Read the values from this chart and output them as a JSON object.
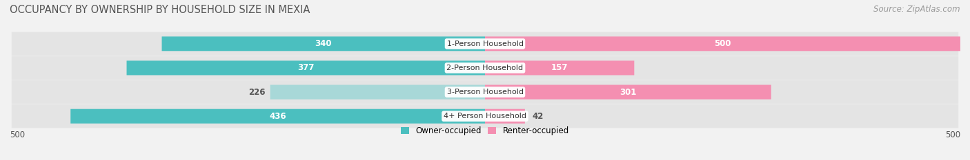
{
  "title": "OCCUPANCY BY OWNERSHIP BY HOUSEHOLD SIZE IN MEXIA",
  "source": "Source: ZipAtlas.com",
  "categories": [
    "1-Person Household",
    "2-Person Household",
    "3-Person Household",
    "4+ Person Household"
  ],
  "owner_values": [
    340,
    377,
    226,
    436
  ],
  "renter_values": [
    500,
    157,
    301,
    42
  ],
  "x_max": 500,
  "owner_color": "#4bbfbf",
  "owner_color_light": "#a8d8d8",
  "renter_color": "#f48fb1",
  "renter_color_light": "#f8bbd0",
  "bg_color": "#f2f2f2",
  "row_bg": "#e4e4e4",
  "axis_label_left": "500",
  "axis_label_right": "500",
  "title_fontsize": 10.5,
  "source_fontsize": 8.5,
  "bar_label_fontsize": 8.5,
  "category_fontsize": 8.0,
  "owner_light_rows": [
    2
  ],
  "renter_light_rows": []
}
